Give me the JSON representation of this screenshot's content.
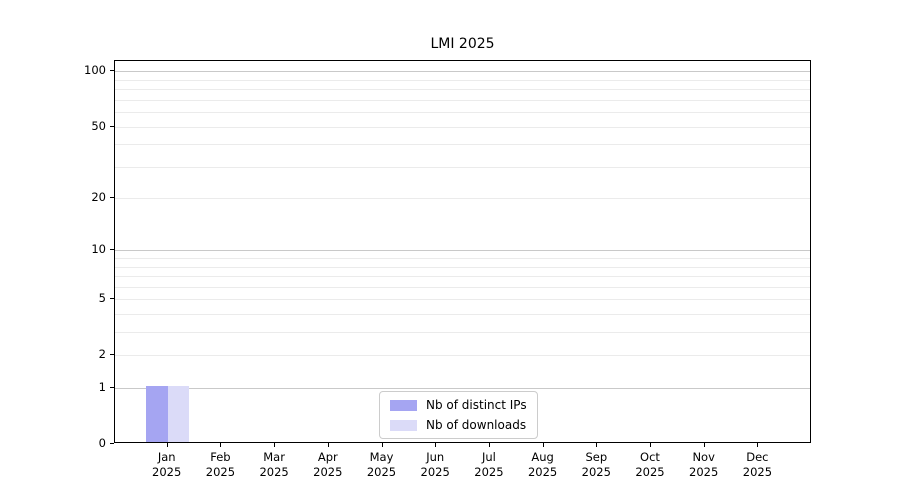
{
  "chart_data": {
    "type": "bar",
    "title": "LMI 2025",
    "categories": [
      "Jan",
      "Feb",
      "Mar",
      "Apr",
      "May",
      "Jun",
      "Jul",
      "Aug",
      "Sep",
      "Oct",
      "Nov",
      "Dec"
    ],
    "year_label": "2025",
    "series": [
      {
        "name": "Nb of distinct IPs",
        "color": "#a5a5f2",
        "values": [
          1,
          0,
          0,
          0,
          0,
          0,
          0,
          0,
          0,
          0,
          0,
          0
        ]
      },
      {
        "name": "Nb of downloads",
        "color": "#dbdbf8",
        "values": [
          1,
          0,
          0,
          0,
          0,
          0,
          0,
          0,
          0,
          0,
          0,
          0
        ]
      }
    ],
    "xlabel": "",
    "ylabel": "",
    "y_scale": "log1p",
    "ylim": [
      0,
      114
    ],
    "y_ticks_labeled": [
      0,
      1,
      2,
      5,
      10,
      20,
      50,
      100
    ],
    "y_gridlines_major": [
      1,
      10,
      100
    ],
    "y_gridlines_minor": [
      2,
      3,
      4,
      5,
      6,
      7,
      8,
      9,
      20,
      30,
      40,
      50,
      60,
      70,
      80,
      90
    ],
    "grid": "horizontal",
    "legend_position": "lower center"
  },
  "colors": {
    "background": "#ffffff",
    "text": "#000000",
    "spine": "#000000",
    "grid_major": "#c9c9c9",
    "grid_minor": "#ebebeb",
    "legend_border": "#cccccc"
  }
}
